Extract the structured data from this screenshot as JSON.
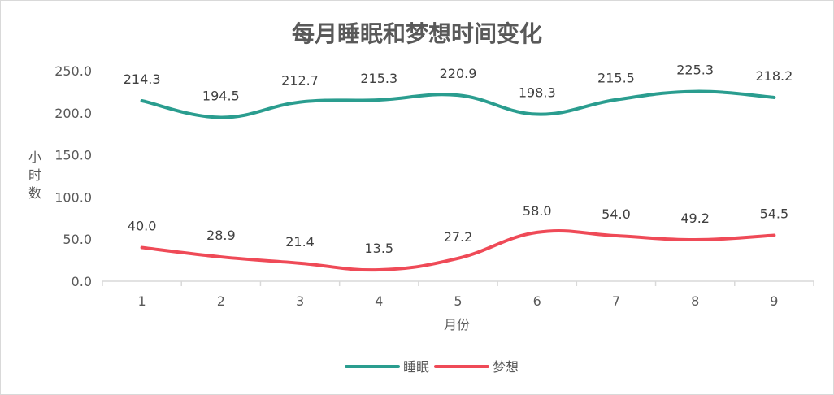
{
  "chart_data": {
    "type": "line",
    "title": "每月睡眠和梦想时间变化",
    "xlabel": "月份",
    "ylabel": "小时数",
    "categories": [
      "1",
      "2",
      "3",
      "4",
      "5",
      "6",
      "7",
      "8",
      "9"
    ],
    "series": [
      {
        "name": "睡眠",
        "color": "#2a9d8f",
        "values": [
          214.3,
          194.5,
          212.7,
          215.3,
          220.9,
          198.3,
          215.5,
          225.3,
          218.2
        ],
        "labels": [
          "214.3",
          "194.5",
          "212.7",
          "215.3",
          "220.9",
          "198.3",
          "215.5",
          "225.3",
          "218.2"
        ]
      },
      {
        "name": "梦想",
        "color": "#ef4a57",
        "values": [
          40.0,
          28.9,
          21.4,
          13.5,
          27.2,
          58.0,
          54.0,
          49.2,
          54.5
        ],
        "labels": [
          "40.0",
          "28.9",
          "21.4",
          "13.5",
          "27.2",
          "58.0",
          "54.0",
          "49.2",
          "54.5"
        ]
      }
    ],
    "ylim": [
      0,
      250
    ],
    "yticks": [
      0,
      50,
      100,
      150,
      200,
      250
    ],
    "ytick_labels": [
      "0.0",
      "50.0",
      "100.0",
      "150.0",
      "200.0",
      "250.0"
    ],
    "grid": false,
    "legend_position": "bottom"
  }
}
